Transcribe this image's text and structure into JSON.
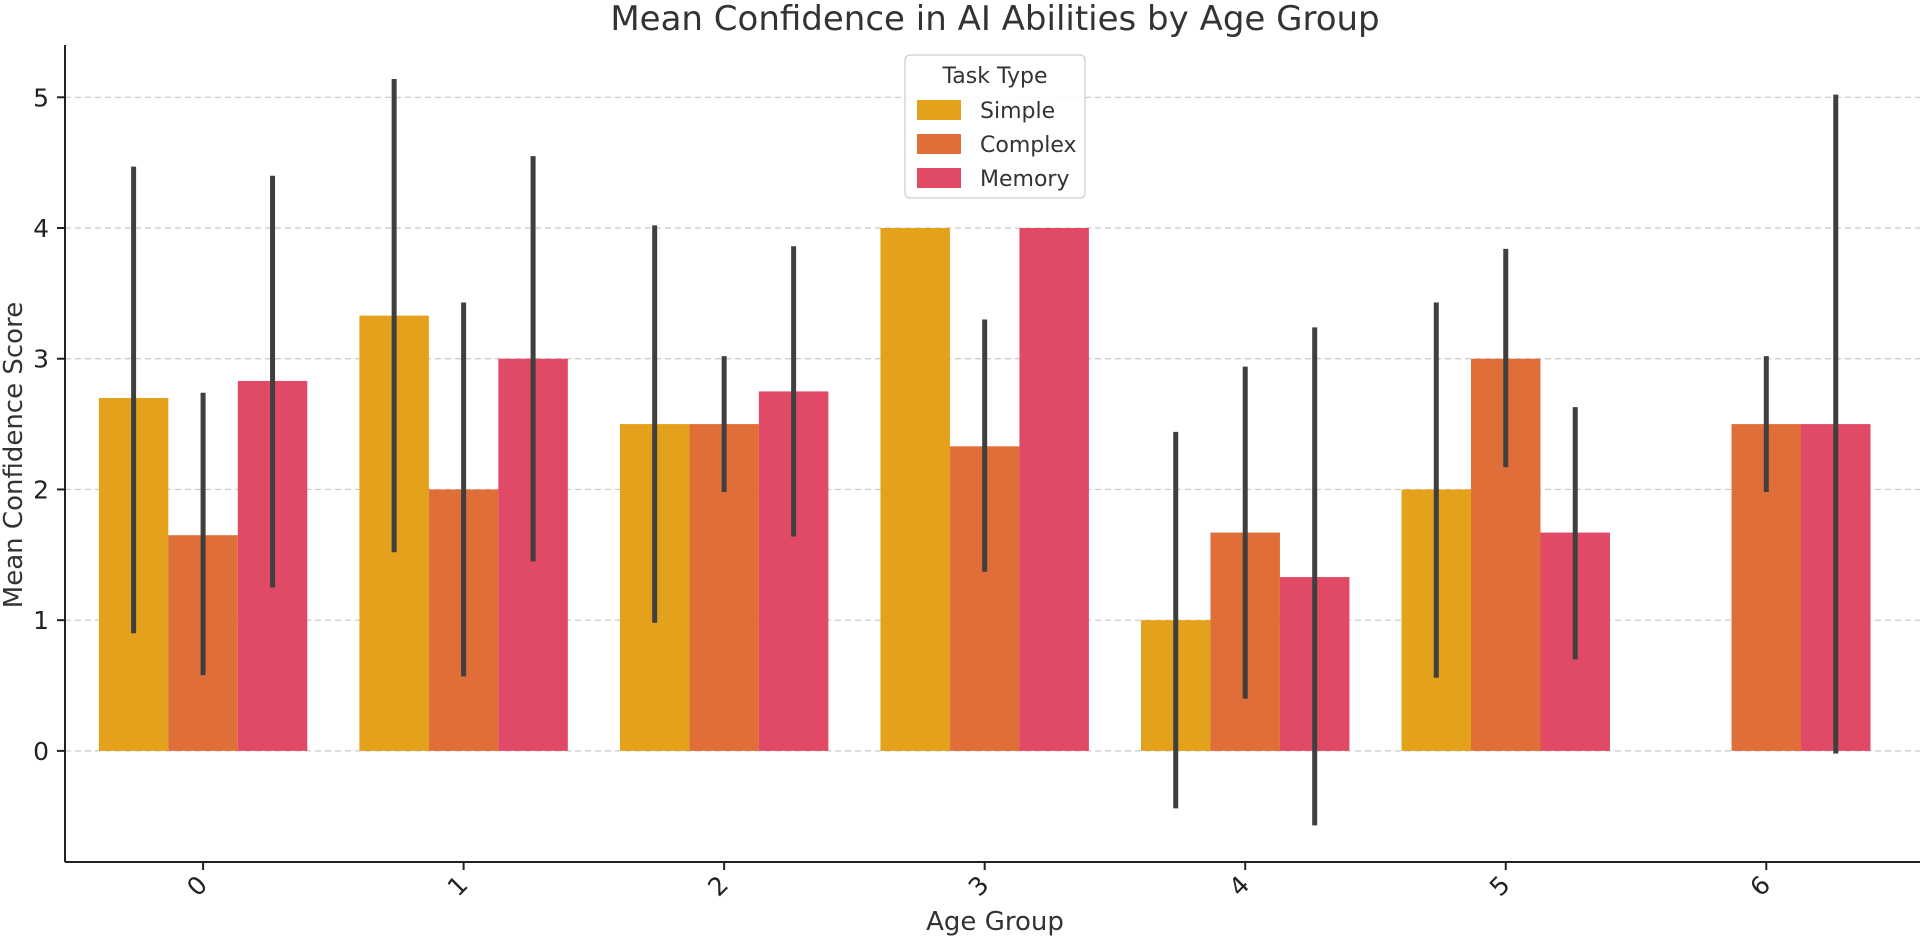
{
  "chart_data": {
    "type": "bar",
    "title": "Mean Confidence in AI Abilities by Age Group",
    "xlabel": "Age Group",
    "ylabel": "Mean Confidence Score",
    "categories": [
      "0",
      "1",
      "2",
      "3",
      "4",
      "5",
      "6"
    ],
    "ylim": [
      -0.85,
      5.4
    ],
    "yticks": [
      0,
      1,
      2,
      3,
      4,
      5
    ],
    "grid": true,
    "legend": {
      "title": "Task Type",
      "placement": "top-center"
    },
    "series": [
      {
        "name": "Simple",
        "color": "#E4A11B",
        "values": [
          2.7,
          3.33,
          2.5,
          4.0,
          1.0,
          2.0,
          null
        ],
        "err_low": [
          0.9,
          1.52,
          0.98,
          null,
          -0.44,
          0.56,
          null
        ],
        "err_high": [
          4.47,
          5.14,
          4.02,
          null,
          2.44,
          3.43,
          null
        ]
      },
      {
        "name": "Complex",
        "color": "#E06E38",
        "values": [
          1.65,
          2.0,
          2.5,
          2.33,
          1.67,
          3.0,
          2.5
        ],
        "err_low": [
          0.58,
          0.57,
          1.98,
          1.37,
          0.4,
          2.17,
          1.98
        ],
        "err_high": [
          2.74,
          3.43,
          3.02,
          3.3,
          2.94,
          3.84,
          3.02
        ]
      },
      {
        "name": "Memory",
        "color": "#E04A66",
        "values": [
          2.83,
          3.0,
          2.75,
          4.0,
          1.33,
          1.67,
          2.5
        ],
        "err_low": [
          1.25,
          1.45,
          1.64,
          null,
          -0.57,
          0.7,
          -0.02
        ],
        "err_high": [
          4.4,
          4.55,
          3.86,
          null,
          3.24,
          2.63,
          5.02
        ]
      }
    ]
  }
}
